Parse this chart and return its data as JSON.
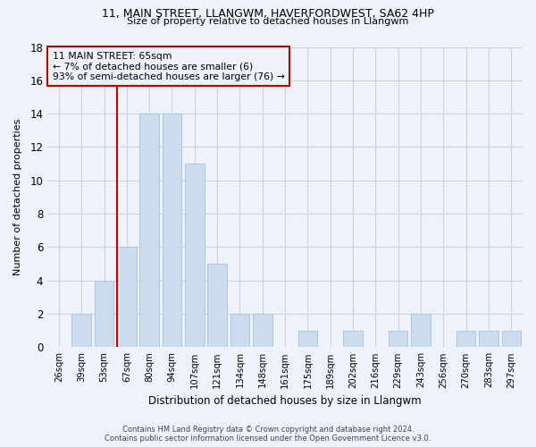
{
  "title1": "11, MAIN STREET, LLANGWM, HAVERFORDWEST, SA62 4HP",
  "title2": "Size of property relative to detached houses in Llangwm",
  "xlabel": "Distribution of detached houses by size in Llangwm",
  "ylabel": "Number of detached properties",
  "categories": [
    "26sqm",
    "39sqm",
    "53sqm",
    "67sqm",
    "80sqm",
    "94sqm",
    "107sqm",
    "121sqm",
    "134sqm",
    "148sqm",
    "161sqm",
    "175sqm",
    "189sqm",
    "202sqm",
    "216sqm",
    "229sqm",
    "243sqm",
    "256sqm",
    "270sqm",
    "283sqm",
    "297sqm"
  ],
  "values": [
    0,
    2,
    4,
    6,
    14,
    14,
    11,
    5,
    2,
    2,
    0,
    1,
    0,
    1,
    0,
    1,
    2,
    0,
    1,
    1,
    1
  ],
  "bar_color": "#ccdcee",
  "bar_edge_color": "#aac8e0",
  "grid_color": "#c8d4e4",
  "marker_line_color": "#bb0000",
  "annotation_box_text": "11 MAIN STREET: 65sqm\n← 7% of detached houses are smaller (6)\n93% of semi-detached houses are larger (76) →",
  "annotation_box_edge_color": "#bb0000",
  "footer1": "Contains HM Land Registry data © Crown copyright and database right 2024.",
  "footer2": "Contains public sector information licensed under the Open Government Licence v3.0.",
  "ylim": [
    0,
    18
  ],
  "yticks": [
    0,
    2,
    4,
    6,
    8,
    10,
    12,
    14,
    16,
    18
  ],
  "bg_color": "#eef2fa"
}
